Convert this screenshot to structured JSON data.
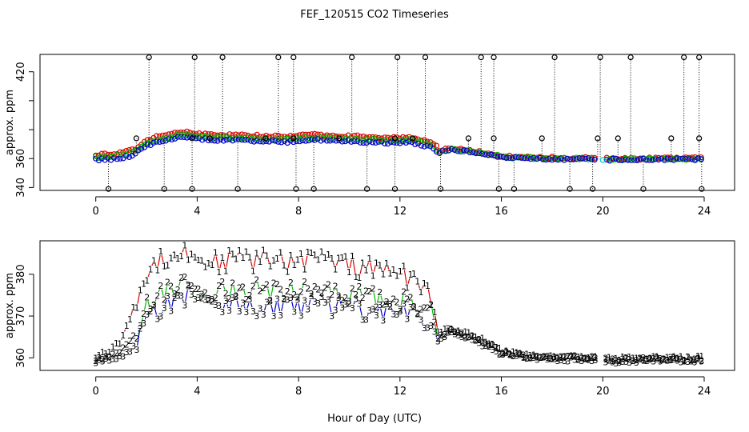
{
  "title": "FEF_120515  CO2 Timeseries",
  "xlabel": "Hour of Day (UTC)",
  "colors": {
    "series1": "#dd0000",
    "series2": "#00bb00",
    "series3": "#0000cc",
    "outlier": "#000000",
    "cyan": "#00cccc"
  },
  "chart_data": [
    {
      "type": "scatter",
      "title": "FEF_120515  CO2 Timeseries",
      "xlabel": "",
      "ylabel": "approx. ppm",
      "xlim": [
        -2.2,
        25.2
      ],
      "ylim": [
        338,
        432
      ],
      "xticks": [
        0,
        4,
        8,
        12,
        16,
        20,
        24
      ],
      "yticks": [
        340,
        360,
        380,
        400,
        420
      ],
      "ytick_labels": [
        "340",
        "360",
        "",
        "",
        "420"
      ],
      "markers": "open circles",
      "outliers_high": [
        2.1,
        3.9,
        5.0,
        7.2,
        7.8,
        10.1,
        11.9,
        13.0,
        15.2,
        15.7,
        18.1,
        19.9,
        21.1,
        23.2,
        23.8
      ],
      "outliers_mid": [
        1.6,
        3.8,
        4.5,
        6.7,
        7.8,
        9.6,
        11.8,
        12.5,
        14.7,
        15.7,
        17.6,
        19.8,
        20.6,
        22.7,
        23.8
      ],
      "outliers_low": [
        0.5,
        2.7,
        3.8,
        5.6,
        7.9,
        8.6,
        10.7,
        11.8,
        13.6,
        15.9,
        16.5,
        18.7,
        19.6,
        21.6,
        23.9
      ],
      "cyan_point": {
        "x": 20.0,
        "y": 359
      },
      "series": [
        {
          "name": "1",
          "color": "#dd0000",
          "y_offset": 3.5
        },
        {
          "name": "2",
          "color": "#00bb00",
          "y_offset": 1.8
        },
        {
          "name": "3",
          "color": "#0000cc",
          "y_offset": 0
        }
      ]
    },
    {
      "type": "line",
      "xlabel": "Hour of Day (UTC)",
      "ylabel": "approx. ppm",
      "xlim": [
        -2.2,
        25.2
      ],
      "ylim": [
        357,
        388
      ],
      "xticks": [
        0,
        4,
        8,
        12,
        16,
        20,
        24
      ],
      "yticks": [
        360,
        370,
        380
      ],
      "markers": "series number characters",
      "gap": [
        19.75,
        20.05
      ],
      "series": [
        {
          "name": "1",
          "color": "#dd0000",
          "profile": [
            [
              0,
              360.5
            ],
            [
              0.5,
              361.5
            ],
            [
              1.0,
              364
            ],
            [
              1.5,
              372
            ],
            [
              2.0,
              380
            ],
            [
              2.5,
              384
            ],
            [
              3.5,
              385
            ],
            [
              4.5,
              383
            ],
            [
              6.0,
              383.5
            ],
            [
              7.5,
              383
            ],
            [
              8.5,
              384
            ],
            [
              10.0,
              382
            ],
            [
              11.5,
              380.5
            ],
            [
              12.5,
              379
            ],
            [
              13.2,
              376
            ],
            [
              13.5,
              366
            ],
            [
              14.0,
              367
            ],
            [
              15.0,
              365
            ],
            [
              15.6,
              363.5
            ],
            [
              16.0,
              361.5
            ],
            [
              17.0,
              360.5
            ],
            [
              19.7,
              360.2
            ],
            [
              20.1,
              359.8
            ],
            [
              23.9,
              360
            ]
          ]
        },
        {
          "name": "2",
          "color": "#00bb00",
          "profile": [
            [
              0,
              359.8
            ],
            [
              0.5,
              360.5
            ],
            [
              1.0,
              361.5
            ],
            [
              1.5,
              365
            ],
            [
              2.0,
              372
            ],
            [
              2.5,
              375
            ],
            [
              3.5,
              377
            ],
            [
              4.5,
              376
            ],
            [
              6.0,
              376.5
            ],
            [
              7.5,
              376
            ],
            [
              8.5,
              376.5
            ],
            [
              10.0,
              375.5
            ],
            [
              11.5,
              374
            ],
            [
              12.5,
              373.5
            ],
            [
              13.2,
              372
            ],
            [
              13.5,
              365
            ],
            [
              14.0,
              367
            ],
            [
              15.0,
              364.5
            ],
            [
              15.6,
              363
            ],
            [
              16.0,
              361.3
            ],
            [
              17.0,
              360.3
            ],
            [
              19.7,
              360
            ],
            [
              20.1,
              359.6
            ],
            [
              23.9,
              359.8
            ]
          ]
        },
        {
          "name": "3",
          "color": "#0000cc",
          "profile": [
            [
              0,
              359.3
            ],
            [
              0.5,
              359.6
            ],
            [
              1.0,
              360.3
            ],
            [
              1.5,
              362.5
            ],
            [
              2.0,
              369
            ],
            [
              2.5,
              372
            ],
            [
              3.5,
              375
            ],
            [
              4.5,
              373
            ],
            [
              6.0,
              372.5
            ],
            [
              7.5,
              371.5
            ],
            [
              8.5,
              373
            ],
            [
              10.0,
              372
            ],
            [
              11.5,
              371
            ],
            [
              12.5,
              371
            ],
            [
              13.2,
              368
            ],
            [
              13.5,
              364
            ],
            [
              14.0,
              366.5
            ],
            [
              15.0,
              364
            ],
            [
              15.6,
              362.5
            ],
            [
              16.0,
              361
            ],
            [
              17.0,
              360
            ],
            [
              19.7,
              359.5
            ],
            [
              20.1,
              359.2
            ],
            [
              23.9,
              359.5
            ]
          ]
        }
      ]
    }
  ]
}
